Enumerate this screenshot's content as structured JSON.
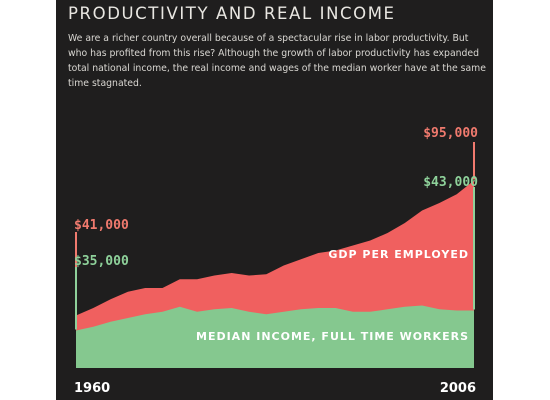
{
  "header": {
    "title": "PRODUCTIVITY AND REAL INCOME",
    "description": "We are a richer country overall because of a spectacular rise in labor productivity. But who has profited from this rise? Although the growth of labor productivity has expanded total national income, the real income and wages of the median worker have at the same time stagnated."
  },
  "colors": {
    "background": "#1f1e1e",
    "gdp": "#f0605f",
    "income": "#85c88f",
    "gdp_label": "#f07a6e",
    "income_label": "#8ed19a",
    "text": "#e9e7e2"
  },
  "chart_data": {
    "type": "area",
    "title": "PRODUCTIVITY AND REAL INCOME",
    "x": [
      1960,
      1962,
      1964,
      1966,
      1968,
      1970,
      1972,
      1974,
      1976,
      1978,
      1980,
      1982,
      1984,
      1986,
      1988,
      1990,
      1992,
      1994,
      1996,
      1998,
      2000,
      2002,
      2004,
      2006
    ],
    "xlim": [
      1960,
      2006
    ],
    "x_tick_labels": [
      "1960",
      "2006"
    ],
    "ylim": [
      20000,
      100000
    ],
    "series": [
      {
        "name": "GDP PER EMPLOYED",
        "values": [
          41000,
          44000,
          47500,
          50500,
          52000,
          52000,
          55500,
          55500,
          57000,
          58000,
          57000,
          57500,
          61000,
          63500,
          66000,
          67000,
          69000,
          71000,
          74000,
          78000,
          83000,
          86000,
          89500,
          95000
        ],
        "start_label": "$41,000",
        "end_label": "$95,000"
      },
      {
        "name": "MEDIAN INCOME, FULL TIME WORKERS",
        "values": [
          35000,
          36500,
          38500,
          40000,
          41500,
          42500,
          44500,
          42500,
          43500,
          44000,
          42500,
          41500,
          42500,
          43500,
          44000,
          44000,
          42500,
          42500,
          43500,
          44500,
          45000,
          43500,
          43000,
          43000
        ],
        "start_label": "$35,000",
        "end_label": "$43,000"
      }
    ]
  }
}
